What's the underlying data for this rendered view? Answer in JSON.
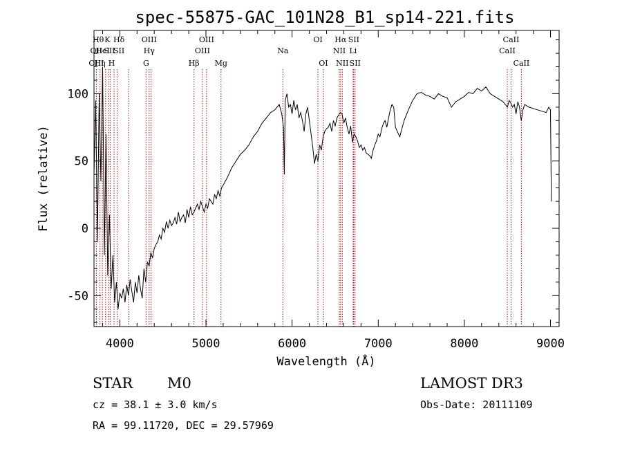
{
  "chart_data": {
    "type": "line",
    "title": "spec-55875-GAC_101N28_B1_sp14-221.fits",
    "xlabel": "Wavelength (Å)",
    "ylabel": "Flux (relative)",
    "xlim": [
      3700,
      9100
    ],
    "ylim": [
      -73,
      147
    ],
    "xticks": [
      4000,
      5000,
      6000,
      7000,
      8000,
      9000
    ],
    "yticks": [
      -50,
      0,
      50,
      100
    ],
    "grid": false,
    "line_color": "#000000",
    "marker_color": "#cc0000",
    "series": [
      {
        "x": [
          3700,
          3720,
          3740,
          3760,
          3780,
          3800,
          3820,
          3840,
          3860,
          3880,
          3900,
          3920,
          3940,
          3960,
          3980,
          4000,
          4020,
          4040,
          4060,
          4080,
          4100,
          4120,
          4140,
          4160,
          4180,
          4200,
          4220,
          4240,
          4260,
          4280,
          4300,
          4320,
          4340,
          4360,
          4380,
          4400,
          4420,
          4440,
          4460,
          4480,
          4500,
          4520,
          4540,
          4560,
          4580,
          4600,
          4620,
          4640,
          4660,
          4680,
          4700,
          4720,
          4740,
          4760,
          4780,
          4800,
          4820,
          4840,
          4860,
          4880,
          4900,
          4920,
          4940,
          4960,
          4980,
          5000,
          5020,
          5040,
          5060,
          5080,
          5100,
          5120,
          5140,
          5160,
          5180,
          5200,
          5250,
          5300,
          5350,
          5400,
          5450,
          5500,
          5550,
          5600,
          5650,
          5700,
          5750,
          5800,
          5850,
          5880,
          5900,
          5910,
          5920,
          5940,
          5960,
          5980,
          6000,
          6020,
          6040,
          6060,
          6080,
          6100,
          6120,
          6140,
          6160,
          6180,
          6200,
          6220,
          6240,
          6260,
          6280,
          6300,
          6320,
          6340,
          6360,
          6380,
          6400,
          6420,
          6440,
          6460,
          6480,
          6500,
          6520,
          6540,
          6560,
          6580,
          6600,
          6620,
          6640,
          6660,
          6680,
          6700,
          6720,
          6740,
          6760,
          6780,
          6800,
          6820,
          6840,
          6860,
          6880,
          6900,
          6920,
          6940,
          6960,
          6980,
          7000,
          7020,
          7040,
          7060,
          7080,
          7100,
          7120,
          7140,
          7160,
          7180,
          7200,
          7250,
          7300,
          7350,
          7400,
          7450,
          7500,
          7550,
          7600,
          7650,
          7700,
          7750,
          7800,
          7850,
          7900,
          7950,
          8000,
          8050,
          8100,
          8150,
          8200,
          8250,
          8300,
          8350,
          8400,
          8450,
          8500,
          8520,
          8540,
          8560,
          8580,
          8600,
          8620,
          8640,
          8660,
          8680,
          8700,
          8750,
          8800,
          8850,
          8900,
          8950,
          8980,
          9000,
          9010
        ],
        "y": [
          40,
          95,
          -10,
          100,
          35,
          120,
          -20,
          70,
          -35,
          10,
          -45,
          -20,
          -55,
          -40,
          -60,
          -48,
          -52,
          -45,
          -55,
          -42,
          -50,
          -38,
          -47,
          -55,
          -40,
          -48,
          -35,
          -45,
          -52,
          -30,
          -40,
          -25,
          -28,
          -18,
          -22,
          -15,
          -12,
          -10,
          -5,
          -8,
          0,
          -3,
          5,
          0,
          6,
          2,
          4,
          8,
          3,
          12,
          5,
          8,
          10,
          4,
          14,
          8,
          16,
          10,
          12,
          15,
          18,
          14,
          20,
          16,
          12,
          18,
          15,
          22,
          20,
          18,
          25,
          22,
          28,
          24,
          30,
          32,
          38,
          45,
          50,
          55,
          58,
          62,
          68,
          72,
          78,
          82,
          86,
          88,
          92,
          85,
          75,
          40,
          95,
          100,
          90,
          92,
          85,
          95,
          88,
          92,
          82,
          86,
          80,
          72,
          85,
          90,
          80,
          70,
          60,
          48,
          55,
          50,
          62,
          58,
          68,
          72,
          74,
          75,
          78,
          72,
          80,
          76,
          82,
          84,
          86,
          85,
          78,
          82,
          75,
          70,
          76,
          64,
          70,
          68,
          65,
          60,
          62,
          58,
          60,
          56,
          55,
          54,
          52,
          58,
          62,
          65,
          70,
          68,
          74,
          78,
          80,
          75,
          82,
          88,
          92,
          90,
          75,
          68,
          80,
          88,
          95,
          100,
          101,
          99,
          98,
          96,
          100,
          98,
          97,
          90,
          94,
          96,
          98,
          101,
          100,
          104,
          102,
          105,
          100,
          98,
          96,
          94,
          90,
          95,
          93,
          90,
          92,
          85,
          94,
          90,
          80,
          88,
          92,
          90,
          89,
          88,
          87,
          86,
          90,
          88,
          20
        ]
      }
    ],
    "line_markers": [
      {
        "label": "OII",
        "x": 3727,
        "row": 2
      },
      {
        "label": "OIII",
        "x": 3727,
        "row": 3
      },
      {
        "label": "Hθ",
        "x": 3750,
        "row": 1
      },
      {
        "label": "Hη",
        "x": 3770,
        "row": 3
      },
      {
        "label": "HeI",
        "x": 3800,
        "row": 2
      },
      {
        "label": "K",
        "x": 3855,
        "row": 1
      },
      {
        "label": "SII",
        "x": 3880,
        "row": 2
      },
      {
        "label": "H",
        "x": 3905,
        "row": 3
      },
      {
        "label": "Hδ",
        "x": 3990,
        "row": 1
      },
      {
        "label": "SII",
        "x": 3990,
        "row": 2
      },
      {
        "label": "OIII",
        "x": 4340,
        "row": 1
      },
      {
        "label": "Hγ",
        "x": 4340,
        "row": 2
      },
      {
        "label": "G",
        "x": 4305,
        "row": 3
      },
      {
        "label": "Hβ",
        "x": 4861,
        "row": 3
      },
      {
        "label": "OIII",
        "x": 5007,
        "row": 1
      },
      {
        "label": "OIII",
        "x": 4959,
        "row": 2
      },
      {
        "label": "Mg",
        "x": 5175,
        "row": 3
      },
      {
        "label": "Na",
        "x": 5893,
        "row": 2
      },
      {
        "label": "OI",
        "x": 6300,
        "row": 1
      },
      {
        "label": "OI",
        "x": 6363,
        "row": 3
      },
      {
        "label": "Hα",
        "x": 6563,
        "row": 1
      },
      {
        "label": "NII",
        "x": 6548,
        "row": 2
      },
      {
        "label": "NII",
        "x": 6583,
        "row": 3
      },
      {
        "label": "SII",
        "x": 6716,
        "row": 1
      },
      {
        "label": "Li",
        "x": 6708,
        "row": 2
      },
      {
        "label": "SII",
        "x": 6731,
        "row": 3
      },
      {
        "label": "CaII",
        "x": 8542,
        "row": 1
      },
      {
        "label": "CaII",
        "x": 8498,
        "row": 2
      },
      {
        "label": "CaII",
        "x": 8662,
        "row": 3
      }
    ],
    "marker_lines_x": [
      3727,
      3770,
      3798,
      3835,
      3869,
      3889,
      3933,
      3970,
      4102,
      4304,
      4340,
      4363,
      4861,
      4959,
      5007,
      5175,
      5893,
      6300,
      6363,
      6548,
      6563,
      6583,
      6708,
      6716,
      6731,
      8498,
      8542,
      8662
    ]
  },
  "info": {
    "object_class": "STAR",
    "subclass": "M0",
    "survey": "LAMOST DR3",
    "redshift": "cz = 38.1 ± 3.0 km/s",
    "obs_date": "Obs-Date: 20111109",
    "coords": "RA =  99.11720, DEC =  29.57969"
  }
}
